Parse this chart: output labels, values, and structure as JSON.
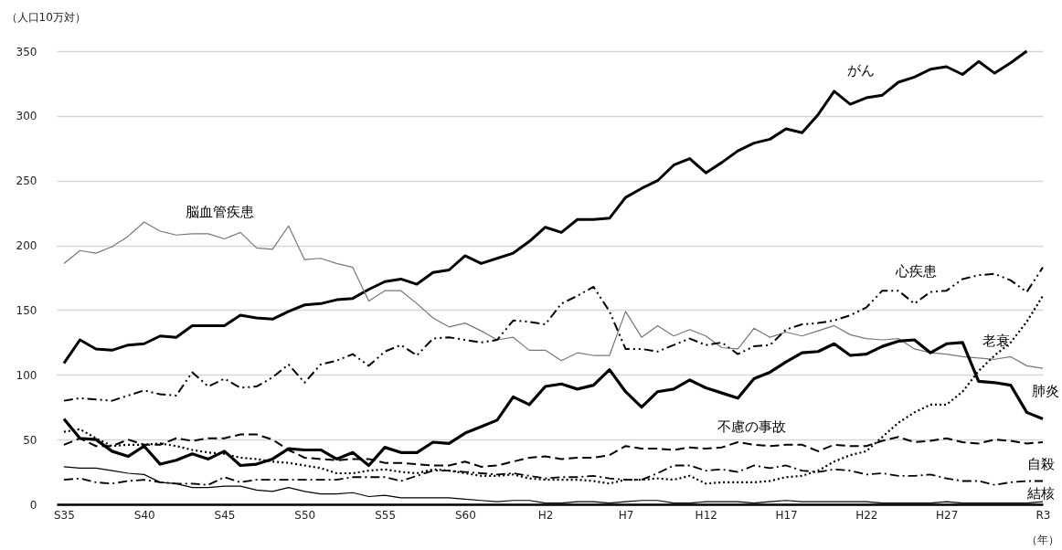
{
  "chart_data": {
    "type": "line",
    "xlabel": "（年）",
    "ylabel": "（人口10万対）",
    "categories": [
      "S35",
      null,
      null,
      null,
      null,
      "S40",
      null,
      null,
      null,
      null,
      "S45",
      null,
      null,
      null,
      null,
      "S50",
      null,
      null,
      null,
      null,
      "S55",
      null,
      null,
      null,
      null,
      "S60",
      null,
      null,
      null,
      null,
      "H2",
      null,
      null,
      null,
      null,
      "H7",
      null,
      null,
      null,
      null,
      "H12",
      null,
      null,
      null,
      null,
      "H17",
      null,
      null,
      null,
      null,
      "H22",
      null,
      null,
      null,
      null,
      "H27",
      null,
      null,
      null,
      null,
      null,
      "R3"
    ],
    "ylim": [
      0,
      350
    ],
    "yticks": [
      0,
      50,
      100,
      150,
      200,
      250,
      300,
      350
    ],
    "grid": "y",
    "series": [
      {
        "name": "がん",
        "color": "#000000",
        "line_style": "solid",
        "values": [
          109,
          127,
          120,
          119,
          123,
          124,
          130,
          129,
          138,
          138,
          138,
          146,
          144,
          143,
          149,
          154,
          155,
          158,
          159,
          166,
          172,
          174,
          170,
          179,
          181,
          192,
          186,
          190,
          194,
          203,
          214,
          210,
          220,
          220,
          221,
          237,
          244,
          250,
          262,
          267,
          256,
          264,
          273,
          279,
          282,
          290,
          287,
          301,
          319,
          309,
          314,
          316,
          326,
          330,
          336,
          338,
          332,
          342,
          333,
          341,
          350,
          null
        ]
      },
      {
        "name": "脳血管疾患",
        "color": "#777777",
        "line_style": "solid",
        "values": [
          186,
          196,
          194,
          199,
          207,
          218,
          211,
          208,
          209,
          209,
          205,
          210,
          198,
          197,
          215,
          189,
          190,
          186,
          183,
          157,
          165,
          165,
          155,
          144,
          137,
          140,
          134,
          127,
          129,
          119,
          119,
          111,
          117,
          115,
          115,
          149,
          129,
          138,
          130,
          135,
          130,
          121,
          120,
          136,
          129,
          133,
          130,
          134,
          138,
          131,
          128,
          127,
          128,
          120,
          117,
          116,
          114,
          113,
          112,
          114,
          107,
          105
        ]
      },
      {
        "name": "心疾患",
        "color": "#000000",
        "line_style": "dashdotdot",
        "values": [
          80,
          82,
          81,
          80,
          84,
          88,
          85,
          84,
          102,
          91,
          97,
          90,
          91,
          98,
          108,
          94,
          108,
          111,
          116,
          107,
          118,
          123,
          115,
          128,
          129,
          127,
          125,
          127,
          142,
          141,
          139,
          155,
          161,
          168,
          149,
          120,
          120,
          118,
          123,
          128,
          123,
          125,
          116,
          122,
          123,
          135,
          139,
          140,
          142,
          146,
          152,
          165,
          165,
          155,
          164,
          165,
          174,
          177,
          178,
          173,
          164,
          183
        ]
      },
      {
        "name": "老衰",
        "color": "#000000",
        "line_style": "dotted",
        "values": [
          56,
          58,
          51,
          45,
          46,
          46,
          47,
          45,
          42,
          40,
          39,
          36,
          35,
          33,
          32,
          30,
          28,
          24,
          24,
          26,
          27,
          25,
          24,
          27,
          26,
          24,
          22,
          22,
          23,
          20,
          19,
          19,
          19,
          18,
          16,
          19,
          19,
          20,
          19,
          22,
          16,
          17,
          17,
          17,
          18,
          21,
          22,
          26,
          33,
          38,
          41,
          52,
          63,
          71,
          77,
          77,
          87,
          103,
          115,
          125,
          141,
          161
        ]
      },
      {
        "name": "肺炎",
        "color": "#000000",
        "line_style": "solid",
        "values": [
          66,
          51,
          50,
          41,
          37,
          45,
          31,
          34,
          39,
          35,
          41,
          30,
          31,
          35,
          43,
          42,
          42,
          35,
          40,
          30,
          44,
          40,
          40,
          48,
          47,
          55,
          60,
          65,
          83,
          77,
          91,
          93,
          89,
          92,
          104,
          87,
          75,
          87,
          89,
          96,
          90,
          86,
          82,
          97,
          102,
          110,
          117,
          118,
          124,
          115,
          116,
          122,
          126,
          127,
          117,
          124,
          125,
          95,
          94,
          92,
          71,
          66
        ]
      },
      {
        "name": "不慮の事故",
        "color": "#000000",
        "line_style": "dashed",
        "values": [
          46,
          51,
          45,
          45,
          50,
          46,
          46,
          51,
          49,
          51,
          51,
          54,
          54,
          50,
          42,
          36,
          35,
          34,
          35,
          35,
          32,
          32,
          31,
          30,
          30,
          33,
          29,
          30,
          33,
          36,
          37,
          35,
          36,
          36,
          38,
          45,
          43,
          43,
          42,
          44,
          43,
          44,
          48,
          46,
          45,
          46,
          46,
          41,
          46,
          45,
          45,
          49,
          52,
          48,
          49,
          51,
          48,
          47,
          50,
          49,
          47,
          48
        ]
      },
      {
        "name": "自殺",
        "color": "#000000",
        "line_style": "dashdot",
        "values": [
          19,
          20,
          17,
          16,
          18,
          19,
          17,
          16,
          16,
          15,
          21,
          17,
          19,
          19,
          19,
          19,
          19,
          19,
          21,
          21,
          21,
          18,
          22,
          26,
          26,
          25,
          24,
          23,
          24,
          22,
          20,
          21,
          21,
          22,
          20,
          19,
          19,
          24,
          30,
          30,
          26,
          27,
          25,
          30,
          28,
          30,
          26,
          25,
          27,
          26,
          23,
          24,
          22,
          22,
          23,
          20,
          18,
          18,
          15,
          17,
          18,
          18
        ]
      },
      {
        "name": "結核",
        "color": "#000000",
        "line_style": "solid",
        "values": [
          29,
          28,
          28,
          26,
          24,
          23,
          17,
          16,
          13,
          13,
          14,
          14,
          11,
          10,
          13,
          10,
          8,
          8,
          9,
          6,
          7,
          5,
          5,
          5,
          5,
          4,
          3,
          2,
          3,
          3,
          1,
          1,
          2,
          2,
          1,
          2,
          3,
          3,
          1,
          1,
          2,
          2,
          2,
          1,
          2,
          3,
          2,
          2,
          2,
          2,
          2,
          1,
          1,
          1,
          1,
          2,
          1,
          1,
          1,
          1,
          1,
          2
        ]
      }
    ]
  }
}
